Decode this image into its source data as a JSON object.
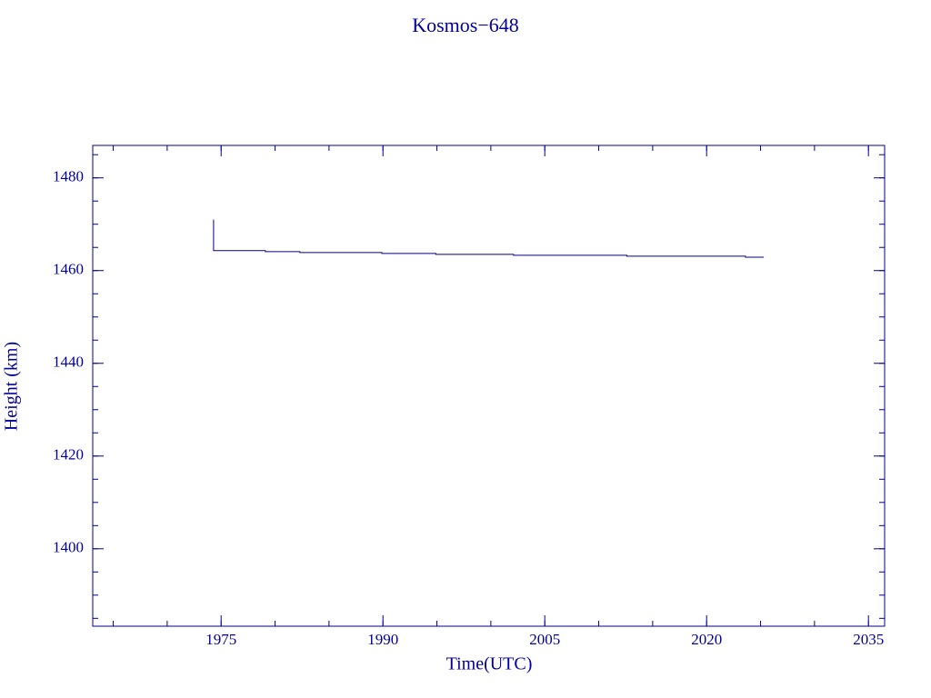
{
  "chart_data": {
    "type": "line",
    "title": "Kosmos−648",
    "x_label": "Time(UTC)",
    "y_label": "Height (km)",
    "series": [
      {
        "color": "#00008b",
        "x": [
          1974.3,
          1974.3,
          1979.1,
          1979.1,
          1982.3,
          1982.3,
          1989.9,
          1989.9,
          1994.9,
          1994.9,
          2002.1,
          2002.1,
          2012.6,
          2012.6,
          2023.6,
          2023.6,
          2025.3
        ],
        "values": [
          1471,
          1464.3,
          1464.3,
          1464.1,
          1464.1,
          1463.9,
          1463.9,
          1463.7,
          1463.7,
          1463.5,
          1463.5,
          1463.3,
          1463.3,
          1463.1,
          1463.1,
          1462.9,
          1462.9
        ]
      }
    ],
    "xlim": [
      1963.1,
      2036.5
    ],
    "xticks": [
      1975,
      1990,
      2005,
      2020,
      2035
    ],
    "ylim": [
      1383.3,
      1487
    ],
    "yticks": [
      1400,
      1420,
      1440,
      1460,
      1480
    ],
    "grid": false
  }
}
